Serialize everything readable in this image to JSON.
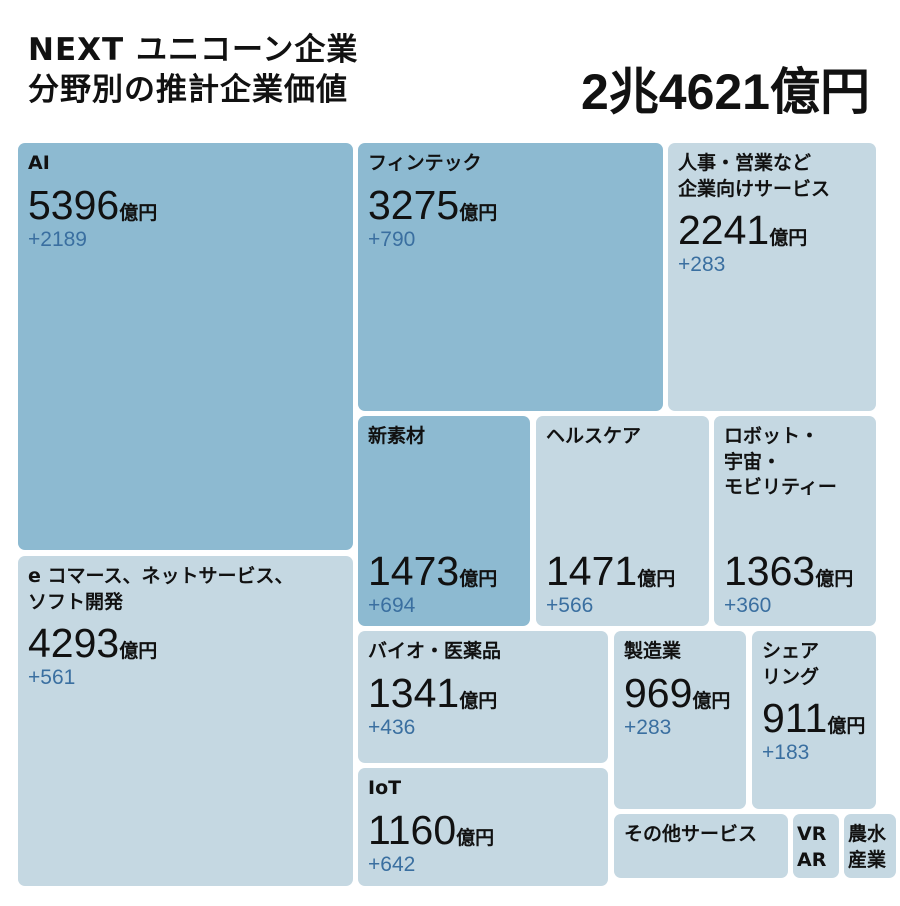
{
  "chart_data": {
    "type": "treemap",
    "title": [
      "NEXT ユニコーン企業",
      "分野別の推計企業価値"
    ],
    "total_label": "2兆4621億円",
    "unit": "億円",
    "categories": [
      "AI",
      "フィンテック",
      "人事・営業など\n企業向けサービス",
      "e コマース、ネットサービス、\nソフト開発",
      "新素材",
      "ヘルスケア",
      "ロボット・\n宇宙・\nモビリティー",
      "バイオ・医薬品",
      "製造業",
      "シェア\nリング",
      "IoT",
      "その他サービス",
      "VR\nAR",
      "農水\n産業"
    ],
    "values": [
      5396,
      3275,
      2241,
      4293,
      1473,
      1471,
      1363,
      1341,
      969,
      911,
      1160,
      null,
      null,
      null
    ],
    "change_labels": [
      "+2189",
      "+790",
      "+283",
      "+561",
      "+694",
      "+566",
      "+360",
      "+436",
      "+283",
      "+183",
      "+642",
      null,
      null,
      null
    ],
    "colors": [
      "#8dbad1",
      "#8dbad1",
      "#c5d8e2",
      "#c5d8e2",
      "#8dbad1",
      "#c5d8e2",
      "#c5d8e2",
      "#c5d8e2",
      "#c5d8e2",
      "#c5d8e2",
      "#c5d8e2",
      "#c5d8e2",
      "#c5d8e2",
      "#c5d8e2"
    ]
  }
}
